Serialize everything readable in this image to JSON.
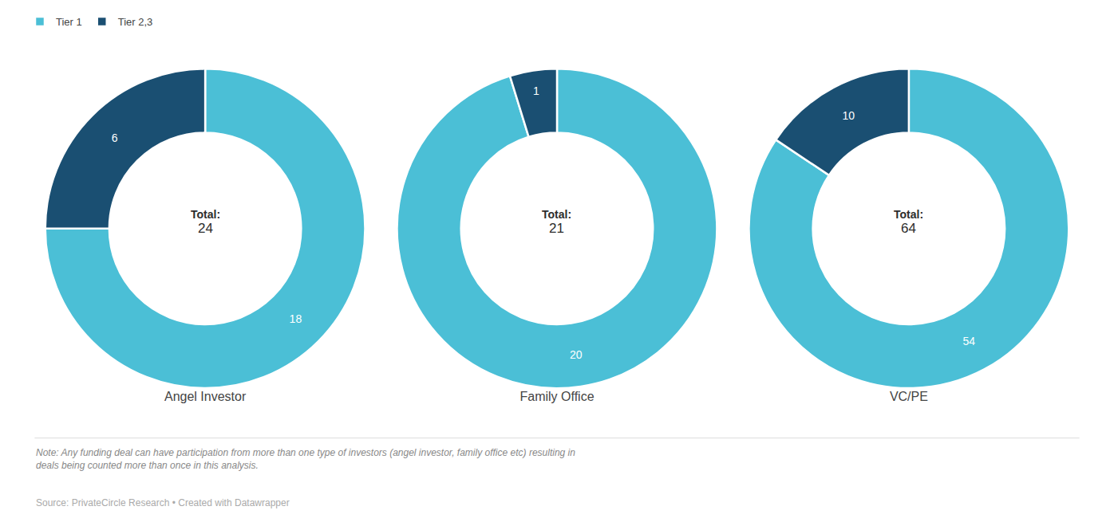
{
  "chart_data": [
    {
      "type": "donut",
      "title": "Angel Investor",
      "categories": [
        "Tier 1",
        "Tier 2,3"
      ],
      "values": [
        18,
        6
      ],
      "colors": [
        "#4BBFD6",
        "#1A4F72"
      ],
      "data_labels": true,
      "legend": "upper left",
      "total_label": "Total:",
      "total": 24
    },
    {
      "type": "donut",
      "title": "Family Office",
      "categories": [
        "Tier 1",
        "Tier 2,3"
      ],
      "values": [
        20,
        1
      ],
      "colors": [
        "#4BBFD6",
        "#1A4F72"
      ],
      "data_labels": true,
      "legend": "upper left",
      "total_label": "Total:",
      "total": 21
    },
    {
      "type": "donut",
      "title": "VC/PE",
      "categories": [
        "Tier 1",
        "Tier 2,3"
      ],
      "values": [
        54,
        10
      ],
      "colors": [
        "#4BBFD6",
        "#1A4F72"
      ],
      "data_labels": true,
      "legend": "upper left",
      "total_label": "Total:",
      "total": 64
    }
  ],
  "annotations": [
    "Note: Any funding deal can have participation from more than one type of investors (angel investor, family office etc) resulting in\ndeals being counted more than once in this analysis.",
    "Source: PrivateCircle Research • Created with Datawrapper"
  ]
}
